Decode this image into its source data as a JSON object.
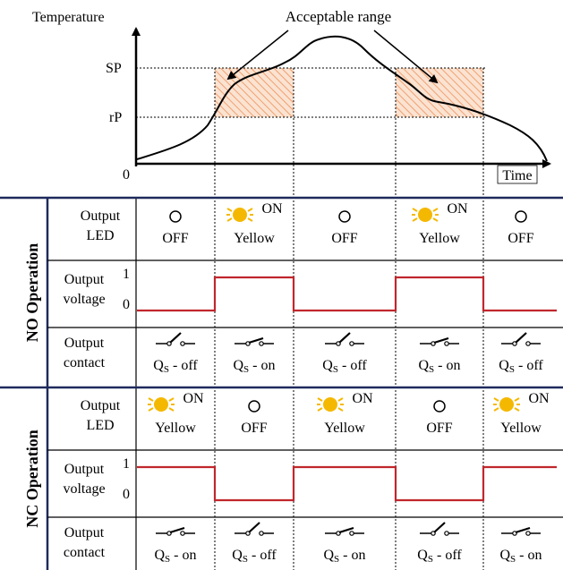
{
  "graph": {
    "y_axis_label": "Temperature",
    "x_axis_label": "Time",
    "origin_label": "0",
    "sp_label": "SP",
    "rp_label": "rP",
    "annotation": "Acceptable range"
  },
  "colors": {
    "frame": "#1f2a5c",
    "signal": "#c0272d",
    "led_on": "#f5b800",
    "hatch": "#f0a070"
  },
  "row_labels": {
    "output_led": [
      "Output",
      "LED"
    ],
    "output_voltage": [
      "Output",
      "voltage"
    ],
    "output_contact": [
      "Output",
      "contact"
    ],
    "level_high": "1",
    "level_low": "0"
  },
  "sections": [
    {
      "title": "NO Operation",
      "led": [
        {
          "state": "off",
          "text": "OFF"
        },
        {
          "state": "on",
          "on_text": "ON",
          "text": "Yellow"
        },
        {
          "state": "off",
          "text": "OFF"
        },
        {
          "state": "on",
          "on_text": "ON",
          "text": "Yellow"
        },
        {
          "state": "off",
          "text": "OFF"
        }
      ],
      "voltage_levels": [
        0,
        1,
        0,
        1,
        0
      ],
      "contact": [
        {
          "closed": false,
          "q": "Q",
          "sub": "S",
          "text": " - off"
        },
        {
          "closed": true,
          "q": "Q",
          "sub": "S",
          "text": " - on"
        },
        {
          "closed": false,
          "q": "Q",
          "sub": "S",
          "text": " - off"
        },
        {
          "closed": true,
          "q": "Q",
          "sub": "S",
          "text": " - on"
        },
        {
          "closed": false,
          "q": "Q",
          "sub": "S",
          "text": " - off"
        }
      ]
    },
    {
      "title": "NC Operation",
      "led": [
        {
          "state": "on",
          "on_text": "ON",
          "text": "Yellow"
        },
        {
          "state": "off",
          "text": "OFF"
        },
        {
          "state": "on",
          "on_text": "ON",
          "text": "Yellow"
        },
        {
          "state": "off",
          "text": "OFF"
        },
        {
          "state": "on",
          "on_text": "ON",
          "text": "Yellow"
        }
      ],
      "voltage_levels": [
        1,
        0,
        1,
        0,
        1
      ],
      "contact": [
        {
          "closed": true,
          "q": "Q",
          "sub": "S",
          "text": " - on"
        },
        {
          "closed": false,
          "q": "Q",
          "sub": "S",
          "text": " - off"
        },
        {
          "closed": true,
          "q": "Q",
          "sub": "S",
          "text": " - on"
        },
        {
          "closed": false,
          "q": "Q",
          "sub": "S",
          "text": " - off"
        },
        {
          "closed": true,
          "q": "Q",
          "sub": "S",
          "text": " - on"
        }
      ]
    }
  ]
}
